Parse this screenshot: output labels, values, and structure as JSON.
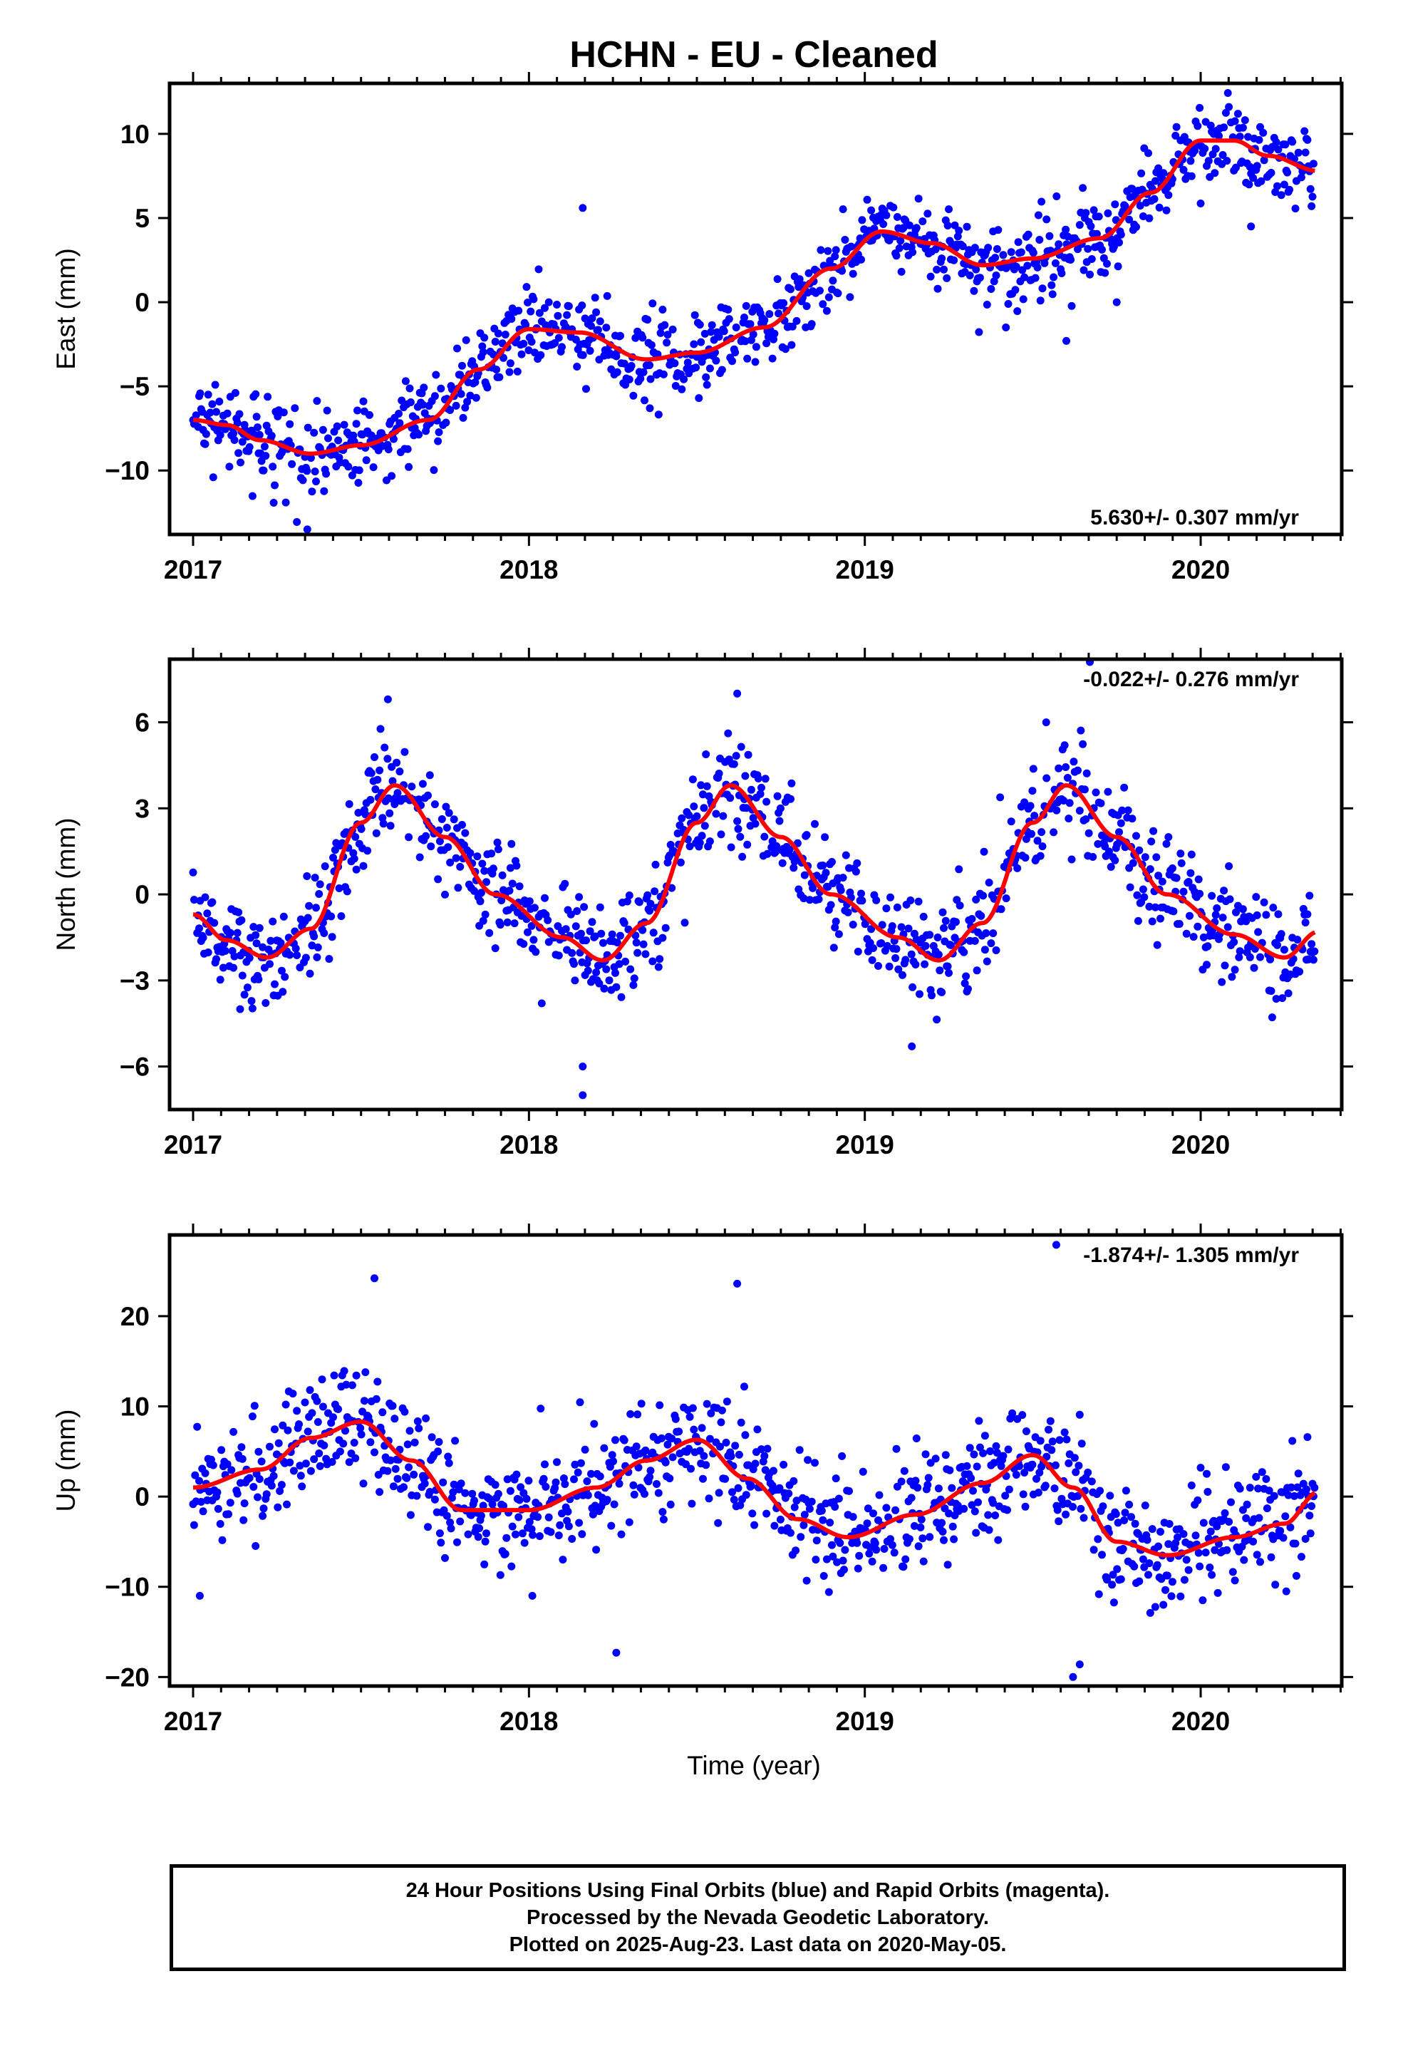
{
  "title": "HCHN  - EU - Cleaned",
  "x_axis_label": "Time (year)",
  "colors": {
    "points": "#0000ff",
    "fit": "#ff0000",
    "frame": "#000000"
  },
  "footer": {
    "line1": "24 Hour Positions Using Final Orbits (blue) and Rapid Orbits (magenta).",
    "line2": "Processed by the Nevada Geodetic Laboratory.",
    "line3": "Plotted on 2025-Aug-23. Last data on 2020-May-05."
  },
  "chart_data": [
    {
      "type": "scatter",
      "name": "east",
      "ylabel": "East (mm)",
      "rate_label": "5.630+/- 0.307 mm/yr",
      "rate_position": "bottom-right",
      "xlim": [
        2016.93,
        2020.42
      ],
      "ylim": [
        -13.8,
        13.0
      ],
      "x_ticks": [
        2017,
        2018,
        2019,
        2020
      ],
      "y_ticks": [
        -10,
        -5,
        0,
        5,
        10
      ],
      "y_tick_labels": [
        "−10",
        "−5",
        "0",
        "5",
        "10"
      ],
      "trend_slope": 5.63,
      "seasonal_fit": {
        "x": [
          2017.0,
          2017.1,
          2017.2,
          2017.35,
          2017.5,
          2017.7,
          2017.85,
          2018.0,
          2018.15,
          2018.35,
          2018.5,
          2018.7,
          2018.9,
          2019.05,
          2019.2,
          2019.35,
          2019.5,
          2019.7,
          2019.85,
          2020.0,
          2020.1,
          2020.2,
          2020.35
        ],
        "y": [
          -7.0,
          -7.3,
          -8.2,
          -9.0,
          -8.5,
          -7.0,
          -4.0,
          -1.6,
          -1.8,
          -3.4,
          -3.0,
          -1.5,
          2.0,
          4.2,
          3.5,
          2.2,
          2.6,
          3.8,
          6.5,
          9.6,
          9.6,
          8.7,
          7.8
        ]
      },
      "scatter_sd": 1.2,
      "outliers": [
        [
          2017.06,
          -10.4
        ],
        [
          2017.34,
          -13.5
        ],
        [
          2018.16,
          5.6
        ],
        [
          2018.36,
          -6.3
        ],
        [
          2019.42,
          -1.5
        ],
        [
          2019.6,
          -2.3
        ],
        [
          2019.75,
          0.0
        ],
        [
          2020.15,
          4.5
        ]
      ]
    },
    {
      "type": "scatter",
      "name": "north",
      "ylabel": "North (mm)",
      "rate_label": "-0.022+/- 0.276 mm/yr",
      "rate_position": "top-right",
      "xlim": [
        2016.93,
        2020.42
      ],
      "ylim": [
        -7.5,
        8.2
      ],
      "x_ticks": [
        2017,
        2018,
        2019,
        2020
      ],
      "y_ticks": [
        -6,
        -3,
        0,
        3,
        6
      ],
      "y_tick_labels": [
        "−6",
        "−3",
        "0",
        "3",
        "6"
      ],
      "trend_slope": -0.022,
      "seasonal_fit": {
        "x": [
          2017.0,
          2017.1,
          2017.22,
          2017.35,
          2017.5,
          2017.6,
          2017.75,
          2017.9,
          2018.1,
          2018.22,
          2018.35,
          2018.5,
          2018.6,
          2018.75,
          2018.9,
          2019.1,
          2019.22,
          2019.35,
          2019.5,
          2019.6,
          2019.75,
          2019.9,
          2020.1,
          2020.25,
          2020.35
        ],
        "y": [
          -0.7,
          -1.6,
          -2.2,
          -1.2,
          2.5,
          3.8,
          2.0,
          0.0,
          -1.5,
          -2.3,
          -1.0,
          2.5,
          3.8,
          2.0,
          0.0,
          -1.5,
          -2.3,
          -1.0,
          2.5,
          3.8,
          2.0,
          0.0,
          -1.4,
          -2.2,
          -1.3
        ]
      },
      "scatter_sd": 0.9,
      "outliers": [
        [
          2018.16,
          -7.0
        ],
        [
          2018.16,
          -6.0
        ],
        [
          2019.14,
          -5.3
        ],
        [
          2017.58,
          6.8
        ],
        [
          2018.62,
          7.0
        ],
        [
          2019.54,
          6.0
        ],
        [
          2019.67,
          8.1
        ],
        [
          2017.14,
          -4.0
        ]
      ]
    },
    {
      "type": "scatter",
      "name": "up",
      "ylabel": "Up (mm)",
      "rate_label": "-1.874+/- 1.305 mm/yr",
      "rate_position": "top-right",
      "xlim": [
        2016.93,
        2020.42
      ],
      "ylim": [
        -21.0,
        29.0
      ],
      "x_ticks": [
        2017,
        2018,
        2019,
        2020
      ],
      "y_ticks": [
        -20,
        -10,
        0,
        10,
        20
      ],
      "y_tick_labels": [
        "−20",
        "−10",
        "0",
        "10",
        "20"
      ],
      "trend_slope": -1.874,
      "seasonal_fit": {
        "x": [
          2017.0,
          2017.2,
          2017.35,
          2017.5,
          2017.65,
          2017.8,
          2018.0,
          2018.2,
          2018.35,
          2018.5,
          2018.65,
          2018.8,
          2018.95,
          2019.15,
          2019.35,
          2019.5,
          2019.62,
          2019.75,
          2019.9,
          2020.1,
          2020.25,
          2020.35
        ],
        "y": [
          1.0,
          3.0,
          6.5,
          8.3,
          4.0,
          -1.5,
          -1.5,
          1.0,
          4.0,
          6.3,
          2.0,
          -2.5,
          -4.5,
          -2.0,
          1.5,
          4.6,
          1.0,
          -5.0,
          -6.5,
          -4.5,
          -3.0,
          0.5
        ]
      },
      "scatter_sd": 3.2,
      "outliers": [
        [
          2017.02,
          -11.0
        ],
        [
          2017.54,
          24.2
        ],
        [
          2018.26,
          -17.3
        ],
        [
          2018.62,
          23.6
        ],
        [
          2019.57,
          27.9
        ],
        [
          2019.64,
          -18.6
        ],
        [
          2019.62,
          -20.0
        ],
        [
          2018.01,
          -11.0
        ]
      ]
    }
  ]
}
